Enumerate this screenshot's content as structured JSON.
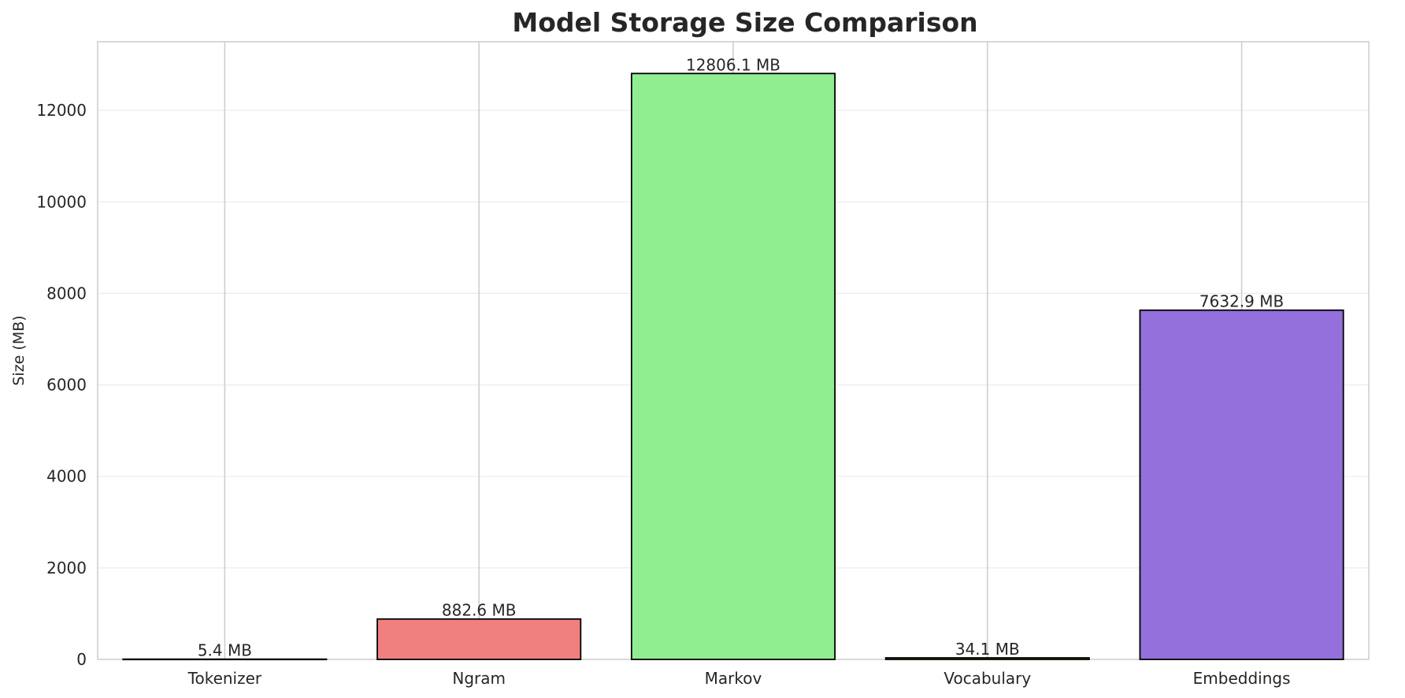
{
  "chart_data": {
    "type": "bar",
    "title": "Model Storage Size Comparison",
    "xlabel": "",
    "ylabel": "Size (MB)",
    "categories": [
      "Tokenizer",
      "Ngram",
      "Markov",
      "Vocabulary",
      "Embeddings"
    ],
    "values": [
      5.4,
      882.6,
      12806.1,
      34.1,
      7632.9
    ],
    "value_labels": [
      "5.4 MB",
      "882.6 MB",
      "12806.1 MB",
      "34.1 MB",
      "7632.9 MB"
    ],
    "colors": [
      "#87ceeb",
      "#f08080",
      "#90ee90",
      "#ffd700",
      "#9370db"
    ],
    "ylim": [
      0,
      13500
    ],
    "yticks": [
      0,
      2000,
      4000,
      6000,
      8000,
      10000,
      12000
    ],
    "grid": true,
    "legend": "none"
  }
}
